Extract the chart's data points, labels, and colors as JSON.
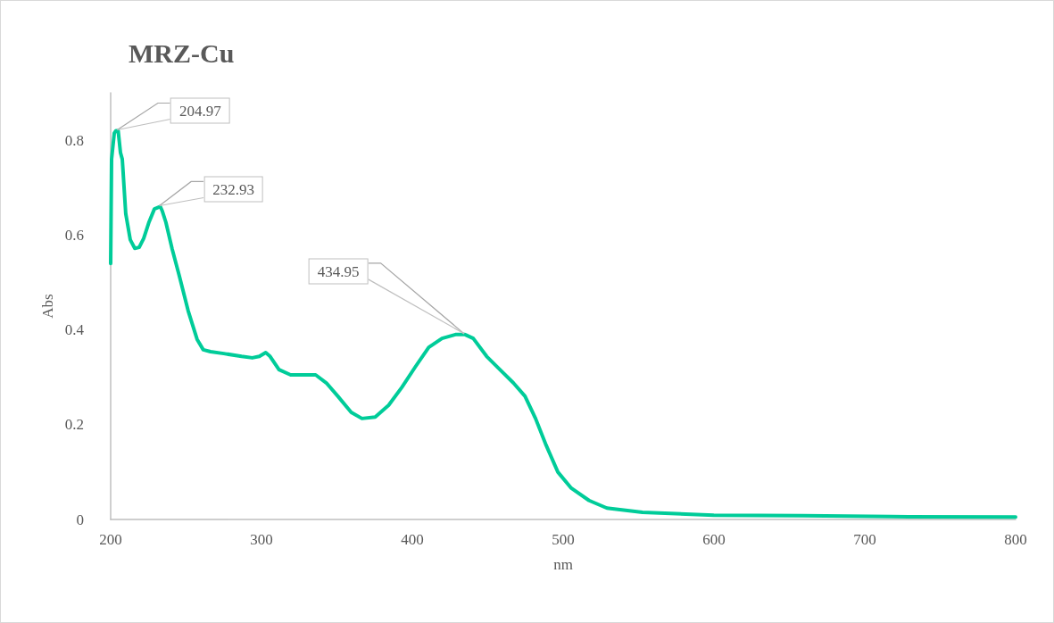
{
  "chart_data": {
    "type": "line",
    "title": "MRZ-Cu",
    "xlabel": "nm",
    "ylabel": "Abs",
    "x": [
      200,
      200.6,
      202.4,
      203.5,
      204.97,
      206.5,
      207.7,
      210,
      213,
      216,
      218.9,
      221.9,
      225.4,
      229,
      232.93,
      234.3,
      236.6,
      240.8,
      245.5,
      251.4,
      257.3,
      261.4,
      266.2,
      275,
      286.8,
      293.9,
      298.6,
      302.8,
      305.7,
      311.6,
      319.3,
      327,
      335.9,
      343,
      350.6,
      359.5,
      366.6,
      375.4,
      384.3,
      393.1,
      402,
      410.9,
      419.7,
      428.6,
      434.95,
      440.4,
      449.3,
      458.1,
      467,
      474.7,
      481.7,
      488.8,
      496.5,
      505.4,
      517.2,
      529,
      552.6,
      599.9,
      659,
      718,
      800
    ],
    "series": [
      {
        "color": "#00cc99",
        "values": [
          0.54,
          0.76,
          0.815,
          0.82,
          0.82,
          0.774,
          0.76,
          0.645,
          0.59,
          0.572,
          0.574,
          0.593,
          0.627,
          0.655,
          0.66,
          0.65,
          0.627,
          0.57,
          0.514,
          0.44,
          0.38,
          0.358,
          0.354,
          0.35,
          0.344,
          0.341,
          0.344,
          0.352,
          0.344,
          0.316,
          0.305,
          0.305,
          0.305,
          0.288,
          0.26,
          0.226,
          0.213,
          0.216,
          0.241,
          0.279,
          0.322,
          0.363,
          0.382,
          0.39,
          0.39,
          0.382,
          0.344,
          0.316,
          0.288,
          0.26,
          0.213,
          0.156,
          0.1,
          0.066,
          0.04,
          0.024,
          0.015,
          0.009,
          0.008,
          0.006,
          0.005
        ]
      }
    ],
    "xlim": [
      200,
      800
    ],
    "xticks": [
      200,
      300,
      400,
      500,
      600,
      700,
      800
    ],
    "ylim": [
      0,
      0.9
    ],
    "yticks": [
      0,
      0.2,
      0.4,
      0.6,
      0.8
    ],
    "annotations": [
      {
        "text": "204.97",
        "x": 204.97,
        "y": 0.82
      },
      {
        "text": "232.93",
        "x": 232.93,
        "y": 0.66
      },
      {
        "text": "434.95",
        "x": 434.95,
        "y": 0.39
      }
    ],
    "grid": false,
    "marker": "none",
    "line_style": "solid"
  }
}
